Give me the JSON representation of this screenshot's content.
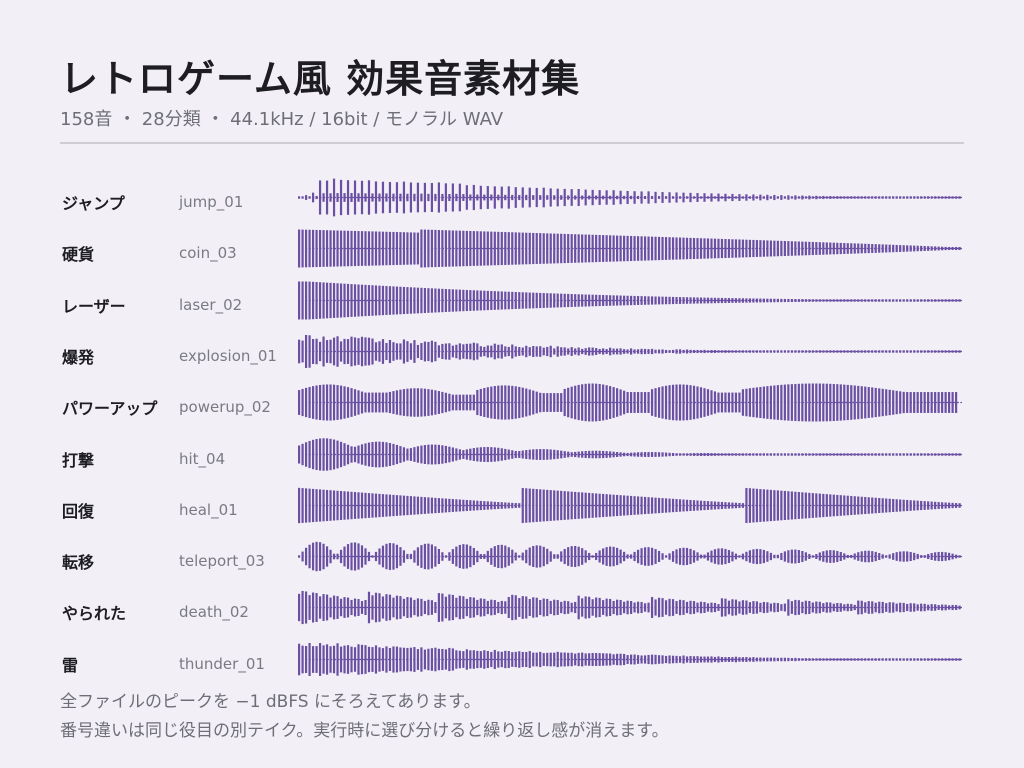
{
  "title": "レトロゲーム風 効果音素材集",
  "subtitle": "158音 ・ 28分類 ・ 44.1kHz / 16bit / モノラル WAV",
  "notes": [
    "全ファイルのピークを −1 dBFS にそろえてあります。",
    "番号違いは同じ役目の別テイク。実行時に選び分けると繰り返し感が消えます。"
  ],
  "colors": {
    "waveform": "#6a4fa3",
    "background": "#f2f0f6",
    "divider": "#cfcdd4"
  },
  "chart_data": {
    "type": "waveform",
    "rows": [
      {
        "name": "ジャンプ",
        "file": "jump_01",
        "shape": "jump"
      },
      {
        "name": "硬貨",
        "file": "coin_03",
        "shape": "coin"
      },
      {
        "name": "レーザー",
        "file": "laser_02",
        "shape": "laser"
      },
      {
        "name": "爆発",
        "file": "explosion_01",
        "shape": "explosion"
      },
      {
        "name": "パワーアップ",
        "file": "powerup_02",
        "shape": "powerup"
      },
      {
        "name": "打撃",
        "file": "hit_04",
        "shape": "hit"
      },
      {
        "name": "回復",
        "file": "heal_01",
        "shape": "heal"
      },
      {
        "name": "転移",
        "file": "teleport_03",
        "shape": "teleport"
      },
      {
        "name": "やられた",
        "file": "death_02",
        "shape": "death"
      },
      {
        "name": "雷",
        "file": "thunder_01",
        "shape": "thunder"
      }
    ]
  }
}
